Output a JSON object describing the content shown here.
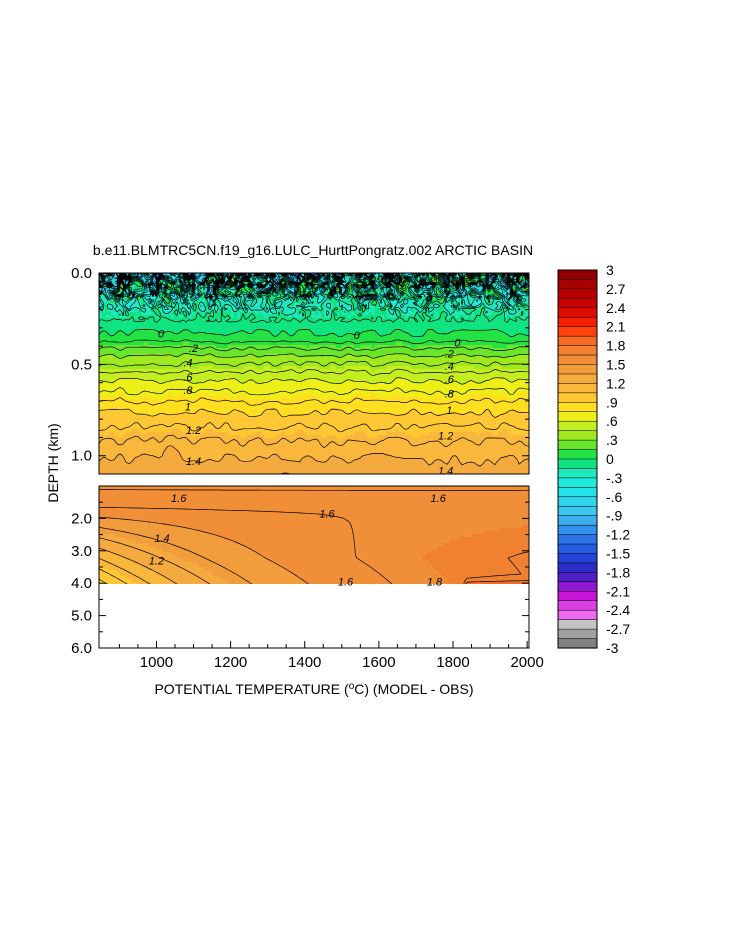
{
  "chart_data": {
    "type": "contour",
    "title": "b.e11.BLMTRC5CN.f19_g16.LULC_HurttPongratz.002 ARCTIC BASIN",
    "xlabel": "POTENTIAL TEMPERATURE (°C) (MODEL - OBS)",
    "xlabel_parts": [
      "POTENTIAL TEMPERATURE (",
      "o",
      "C) (MODEL - OBS)"
    ],
    "ylabel": "DEPTH (km)",
    "xlim": [
      845,
      2005
    ],
    "x_ticks": [
      "1000",
      "1200",
      "1400",
      "1600",
      "1800",
      "2000"
    ],
    "x_tick_values": [
      1000,
      1200,
      1400,
      1600,
      1800,
      2000
    ],
    "upper_panel": {
      "ylim": [
        0.0,
        1.1
      ],
      "y_ticks": [
        "0.0",
        "0.5",
        "1.0"
      ],
      "y_tick_values": [
        0.0,
        0.5,
        1.0
      ],
      "contour_labels": [
        {
          "text": "0",
          "x": 1012,
          "y": 0.33
        },
        {
          "text": "0",
          "x": 1812,
          "y": 0.38
        },
        {
          "text": "0",
          "x": 1540,
          "y": 0.34
        },
        {
          "text": ".2",
          "x": 1100,
          "y": 0.41
        },
        {
          "text": ".4",
          "x": 1085,
          "y": 0.49
        },
        {
          "text": ".6",
          "x": 1085,
          "y": 0.57
        },
        {
          "text": ".8",
          "x": 1085,
          "y": 0.64
        },
        {
          "text": "1",
          "x": 1085,
          "y": 0.73
        },
        {
          "text": "1.2",
          "x": 1100,
          "y": 0.86
        },
        {
          "text": "1.4",
          "x": 1100,
          "y": 1.03
        },
        {
          "text": ".2",
          "x": 1790,
          "y": 0.44
        },
        {
          "text": ".4",
          "x": 1790,
          "y": 0.51
        },
        {
          "text": ".6",
          "x": 1790,
          "y": 0.58
        },
        {
          "text": ".8",
          "x": 1790,
          "y": 0.66
        },
        {
          "text": "1",
          "x": 1790,
          "y": 0.75
        },
        {
          "text": "1.2",
          "x": 1780,
          "y": 0.89
        },
        {
          "text": "1.4",
          "x": 1780,
          "y": 1.08
        }
      ]
    },
    "lower_panel": {
      "ylim": [
        1.0,
        6.0
      ],
      "y_ticks": [
        "2.0",
        "3.0",
        "4.0",
        "5.0",
        "6.0"
      ],
      "y_tick_values": [
        2.0,
        3.0,
        4.0,
        5.0,
        6.0
      ],
      "data_bottom_km": 4.1,
      "contour_labels": [
        {
          "text": "1.6",
          "x": 1060,
          "y": 1.37
        },
        {
          "text": "1.6",
          "x": 1760,
          "y": 1.37
        },
        {
          "text": "1.6",
          "x": 1460,
          "y": 1.85
        },
        {
          "text": "1.4",
          "x": 1015,
          "y": 2.6
        },
        {
          "text": "1.2",
          "x": 1000,
          "y": 3.3
        },
        {
          "text": "1.6",
          "x": 1510,
          "y": 3.95
        },
        {
          "text": "1.8",
          "x": 1750,
          "y": 3.95
        }
      ]
    },
    "colorbar": {
      "labels": [
        "3",
        "2.7",
        "2.4",
        "2.1",
        "1.8",
        "1.5",
        "1.2",
        ".9",
        ".6",
        ".3",
        "0",
        "-.3",
        "-.6",
        "-.9",
        "-1.2",
        "-1.5",
        "-1.8",
        "-2.1",
        "-2.4",
        "-2.7",
        "-3"
      ],
      "values": [
        3,
        2.7,
        2.4,
        2.1,
        1.8,
        1.5,
        1.2,
        0.9,
        0.6,
        0.3,
        0,
        -0.3,
        -0.6,
        -0.9,
        -1.2,
        -1.5,
        -1.8,
        -2.1,
        -2.4,
        -2.7,
        -3
      ],
      "stops": [
        {
          "v": 3.0,
          "c": "#8b0000"
        },
        {
          "v": 2.4,
          "c": "#d40000"
        },
        {
          "v": 2.1,
          "c": "#ff2a00"
        },
        {
          "v": 1.95,
          "c": "#ff5a1a"
        },
        {
          "v": 1.8,
          "c": "#f07a2c"
        },
        {
          "v": 1.5,
          "c": "#f0963a"
        },
        {
          "v": 1.2,
          "c": "#f7b040"
        },
        {
          "v": 0.9,
          "c": "#ffd030"
        },
        {
          "v": 0.75,
          "c": "#ffee10"
        },
        {
          "v": 0.6,
          "c": "#d8f020"
        },
        {
          "v": 0.3,
          "c": "#8ce61e"
        },
        {
          "v": 0.0,
          "c": "#00e050"
        },
        {
          "v": -0.15,
          "c": "#20e8b0"
        },
        {
          "v": -0.45,
          "c": "#20e8e8"
        },
        {
          "v": -0.9,
          "c": "#40c0f0"
        },
        {
          "v": -1.2,
          "c": "#3080e8"
        },
        {
          "v": -1.5,
          "c": "#2050e0"
        },
        {
          "v": -1.8,
          "c": "#3020c0"
        },
        {
          "v": -2.0,
          "c": "#8020d0"
        },
        {
          "v": -2.1,
          "c": "#c000d0"
        },
        {
          "v": -2.5,
          "c": "#f070f0"
        },
        {
          "v": -2.6,
          "c": "#c8c8c8"
        },
        {
          "v": -3.0,
          "c": "#707070"
        }
      ],
      "levels": 40
    }
  }
}
